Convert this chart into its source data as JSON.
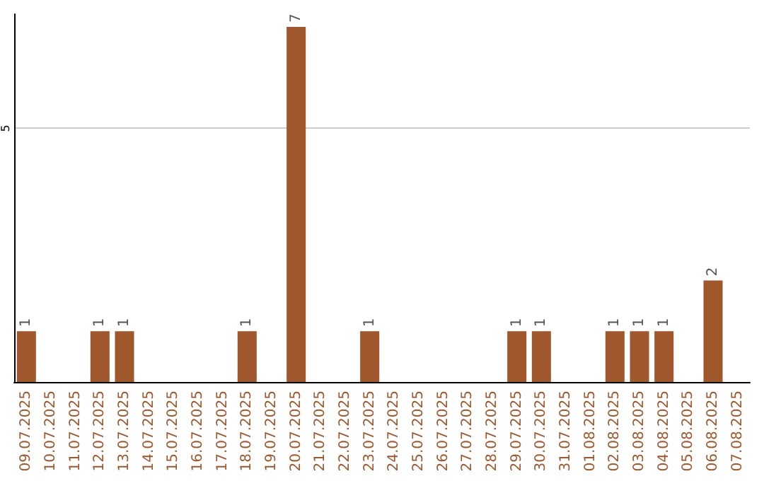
{
  "chart_data": {
    "type": "bar",
    "categories": [
      "09.07.2025",
      "10.07.2025",
      "11.07.2025",
      "12.07.2025",
      "13.07.2025",
      "14.07.2025",
      "15.07.2025",
      "16.07.2025",
      "17.07.2025",
      "18.07.2025",
      "19.07.2025",
      "20.07.2025",
      "21.07.2025",
      "22.07.2025",
      "23.07.2025",
      "24.07.2025",
      "25.07.2025",
      "26.07.2025",
      "27.07.2025",
      "28.07.2025",
      "29.07.2025",
      "30.07.2025",
      "31.07.2025",
      "01.08.2025",
      "02.08.2025",
      "03.08.2025",
      "04.08.2025",
      "05.08.2025",
      "06.08.2025",
      "07.08.2025"
    ],
    "values": [
      1,
      0,
      0,
      1,
      1,
      0,
      0,
      0,
      0,
      1,
      0,
      7,
      0,
      0,
      1,
      0,
      0,
      0,
      0,
      0,
      1,
      1,
      0,
      0,
      1,
      1,
      1,
      0,
      2,
      0
    ],
    "value_labels": [
      "1",
      null,
      null,
      "1",
      "1",
      null,
      null,
      null,
      null,
      "1",
      null,
      "7",
      null,
      null,
      "1",
      null,
      null,
      null,
      null,
      null,
      "1",
      "1",
      null,
      null,
      "1",
      "1",
      "1",
      null,
      "2",
      null
    ],
    "color": "#a0572b",
    "ylim": [
      0,
      7.25
    ],
    "yticks": [
      5
    ],
    "grid": "y"
  }
}
